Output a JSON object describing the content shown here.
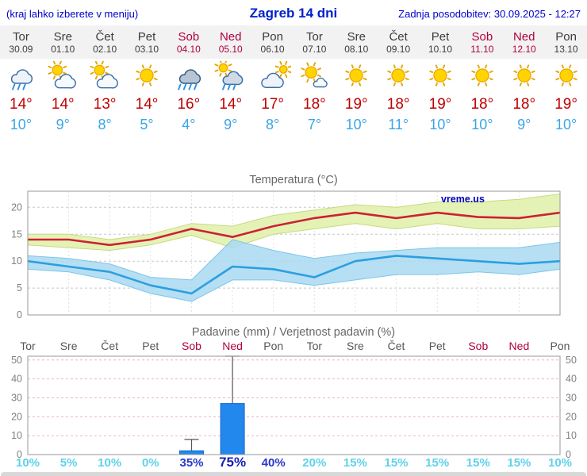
{
  "header": {
    "note": "(kraj lahko izberete v meniju)",
    "title": "Zagreb 14 dni",
    "updated": "Zadnja posodobitev: 30.09.2025 - 12:27"
  },
  "colors": {
    "accent_blue": "#0000cc",
    "weekend_red": "#b00040",
    "tmax_red": "#c00000",
    "tmin_blue": "#3aa5e8",
    "bar_blue": "#2288ee"
  },
  "days": [
    {
      "name": "Tor",
      "date": "30.09",
      "icon": "rain",
      "tmax": "14°",
      "tmin": "10°",
      "weekend": false
    },
    {
      "name": "Sre",
      "date": "01.10",
      "icon": "partly",
      "tmax": "14°",
      "tmin": "9°",
      "weekend": false
    },
    {
      "name": "Čet",
      "date": "02.10",
      "icon": "partly",
      "tmax": "13°",
      "tmin": "8°",
      "weekend": false
    },
    {
      "name": "Pet",
      "date": "03.10",
      "icon": "sun",
      "tmax": "14°",
      "tmin": "5°",
      "weekend": false
    },
    {
      "name": "Sob",
      "date": "04.10",
      "icon": "rain-heavy",
      "tmax": "16°",
      "tmin": "4°",
      "weekend": true
    },
    {
      "name": "Ned",
      "date": "05.10",
      "icon": "showers",
      "tmax": "14°",
      "tmin": "9°",
      "weekend": true
    },
    {
      "name": "Pon",
      "date": "06.10",
      "icon": "cloudy",
      "tmax": "17°",
      "tmin": "8°",
      "weekend": false
    },
    {
      "name": "Tor",
      "date": "07.10",
      "icon": "mostly-sunny",
      "tmax": "18°",
      "tmin": "7°",
      "weekend": false
    },
    {
      "name": "Sre",
      "date": "08.10",
      "icon": "sun",
      "tmax": "19°",
      "tmin": "10°",
      "weekend": false
    },
    {
      "name": "Čet",
      "date": "09.10",
      "icon": "sun",
      "tmax": "18°",
      "tmin": "11°",
      "weekend": false
    },
    {
      "name": "Pet",
      "date": "10.10",
      "icon": "sun",
      "tmax": "19°",
      "tmin": "10°",
      "weekend": false
    },
    {
      "name": "Sob",
      "date": "11.10",
      "icon": "sun",
      "tmax": "18°",
      "tmin": "10°",
      "weekend": true
    },
    {
      "name": "Ned",
      "date": "12.10",
      "icon": "sun",
      "tmax": "18°",
      "tmin": "9°",
      "weekend": true
    },
    {
      "name": "Pon",
      "date": "13.10",
      "icon": "sun",
      "tmax": "19°",
      "tmin": "10°",
      "weekend": false
    }
  ],
  "chart_data": [
    {
      "type": "line",
      "title": "Temperatura (°C)",
      "watermark": "vreme.us",
      "x_labels": [
        "Tor",
        "Sre",
        "Čet",
        "Pet",
        "Sob",
        "Ned",
        "Pon",
        "Tor",
        "Sre",
        "Čet",
        "Pet",
        "Sob",
        "Ned",
        "Pon"
      ],
      "ylim": [
        0,
        23
      ],
      "yticks": [
        0,
        5,
        10,
        15,
        20
      ],
      "grid": true,
      "legend_position": "none",
      "series": [
        {
          "name": "tmax",
          "color": "#cc2233",
          "values": [
            14,
            14,
            13,
            14,
            16,
            14.5,
            16.5,
            18,
            19,
            18,
            19,
            18.2,
            18,
            19
          ]
        },
        {
          "name": "tmin",
          "color": "#2b9fe0",
          "values": [
            10,
            9,
            8,
            5.5,
            4,
            9,
            8.5,
            7,
            10,
            11,
            10.5,
            10,
            9.5,
            10
          ]
        }
      ],
      "bands": [
        {
          "name": "tmax-range",
          "fill": "#e4f1b2",
          "edge": "#c6da7e",
          "hi": [
            15,
            15,
            14,
            15,
            17,
            16.5,
            18.5,
            19.5,
            20.5,
            20,
            21,
            21,
            21.5,
            22.5
          ],
          "lo": [
            13,
            12.5,
            12,
            13,
            14.8,
            12.5,
            15,
            16,
            17,
            16,
            17,
            16,
            16,
            16.5
          ]
        },
        {
          "name": "tmin-range",
          "fill": "#a9d9f2",
          "edge": "#7cc5e9",
          "hi": [
            11,
            10.5,
            9.5,
            7,
            6.5,
            14,
            12,
            10.5,
            11.5,
            12,
            12.5,
            12.5,
            12.5,
            13.5
          ],
          "lo": [
            8.5,
            8,
            6.5,
            4,
            2.5,
            6.5,
            6.5,
            5.5,
            6.5,
            7.5,
            7.5,
            8,
            7.5,
            8.5
          ]
        }
      ]
    },
    {
      "type": "bar",
      "title": "Padavine (mm) / Verjetnost padavin (%)",
      "categories": [
        "Tor",
        "Sre",
        "Čet",
        "Pet",
        "Sob",
        "Ned",
        "Pon",
        "Tor",
        "Sre",
        "Čet",
        "Pet",
        "Sob",
        "Ned",
        "Pon"
      ],
      "weekend": [
        false,
        false,
        false,
        false,
        true,
        true,
        false,
        false,
        false,
        false,
        false,
        true,
        true,
        false
      ],
      "values": [
        0,
        0,
        0,
        0,
        2,
        27,
        0,
        0,
        0,
        0,
        0,
        0,
        0,
        0
      ],
      "whisker_max": [
        0,
        0,
        0,
        0,
        8,
        52,
        0,
        0,
        0,
        0,
        0,
        0,
        0,
        0
      ],
      "probabilities": [
        {
          "label": "10%",
          "level": "low"
        },
        {
          "label": "5%",
          "level": "low"
        },
        {
          "label": "10%",
          "level": "low"
        },
        {
          "label": "0%",
          "level": "low"
        },
        {
          "label": "35%",
          "level": "mid"
        },
        {
          "label": "75%",
          "level": "high"
        },
        {
          "label": "40%",
          "level": "mid"
        },
        {
          "label": "20%",
          "level": "low"
        },
        {
          "label": "15%",
          "level": "low"
        },
        {
          "label": "15%",
          "level": "low"
        },
        {
          "label": "15%",
          "level": "low"
        },
        {
          "label": "15%",
          "level": "low"
        },
        {
          "label": "15%",
          "level": "low"
        },
        {
          "label": "10%",
          "level": "low"
        }
      ],
      "ylim": [
        0,
        52
      ],
      "yticks": [
        0,
        10,
        20,
        30,
        40,
        50
      ],
      "bar_color": "#2288ee"
    }
  ]
}
